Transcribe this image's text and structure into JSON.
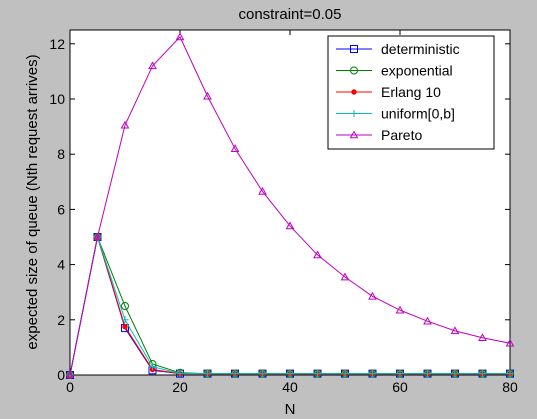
{
  "chart_data": {
    "type": "line",
    "title": "constraint=0.05",
    "xlabel": "N",
    "ylabel": "expected size of queue (Nth request arrives)",
    "xlim": [
      0,
      80
    ],
    "ylim": [
      0,
      12.5
    ],
    "xticks": [
      0,
      20,
      40,
      60,
      80
    ],
    "yticks": [
      0,
      2,
      4,
      6,
      8,
      10,
      12
    ],
    "grid": false,
    "legend_position": "top-right",
    "x": [
      0,
      5,
      10,
      15,
      20,
      25,
      30,
      35,
      40,
      45,
      50,
      55,
      60,
      65,
      70,
      75,
      80
    ],
    "series": [
      {
        "name": "deterministic",
        "color": "#0000ff",
        "marker": "square",
        "values": [
          0,
          5.0,
          1.7,
          0.17,
          0.05,
          0.05,
          0.05,
          0.05,
          0.05,
          0.05,
          0.05,
          0.05,
          0.05,
          0.05,
          0.05,
          0.05,
          0.05
        ]
      },
      {
        "name": "exponential",
        "color": "#008000",
        "marker": "circle",
        "values": [
          0,
          5.0,
          2.5,
          0.4,
          0.08,
          0.05,
          0.05,
          0.05,
          0.05,
          0.05,
          0.05,
          0.05,
          0.05,
          0.05,
          0.05,
          0.05,
          0.05
        ]
      },
      {
        "name": "Erlang 10",
        "color": "#ff0000",
        "marker": "dot",
        "values": [
          0,
          5.0,
          1.75,
          0.2,
          0.05,
          0.05,
          0.05,
          0.05,
          0.05,
          0.05,
          0.05,
          0.05,
          0.05,
          0.05,
          0.05,
          0.05,
          0.05
        ]
      },
      {
        "name": "uniform[0,b]",
        "color": "#00bfbf",
        "marker": "plus",
        "values": [
          0,
          5.0,
          2.0,
          0.3,
          0.06,
          0.05,
          0.05,
          0.05,
          0.05,
          0.05,
          0.05,
          0.05,
          0.05,
          0.05,
          0.05,
          0.05,
          0.05
        ]
      },
      {
        "name": "Pareto",
        "color": "#bf00bf",
        "marker": "triangle",
        "values": [
          0,
          5.0,
          9.05,
          11.2,
          12.25,
          10.1,
          8.2,
          6.65,
          5.4,
          4.35,
          3.55,
          2.85,
          2.35,
          1.95,
          1.6,
          1.35,
          1.15
        ]
      }
    ]
  }
}
